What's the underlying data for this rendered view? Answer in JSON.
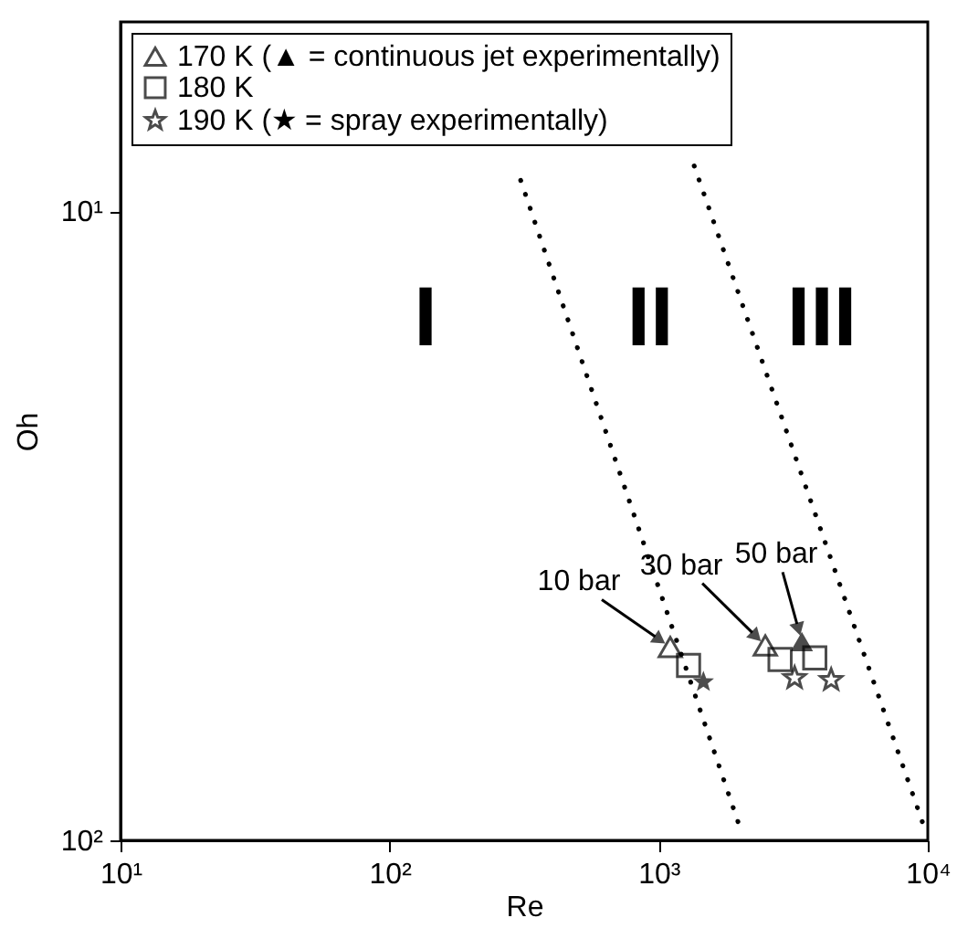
{
  "chart_data": {
    "type": "scatter",
    "xlabel": "Re",
    "ylabel": "Oh",
    "log": "xy",
    "xlim": [
      10,
      10000
    ],
    "ylim": [
      100,
      5
    ],
    "xticks": [
      {
        "value": 10,
        "label": "10¹"
      },
      {
        "value": 100,
        "label": "10²"
      },
      {
        "value": 1000,
        "label": "10³"
      },
      {
        "value": 10000,
        "label": "10⁴"
      }
    ],
    "yticks": [
      {
        "value": 100,
        "label": "10²"
      },
      {
        "value": 10,
        "label": "10¹"
      }
    ],
    "grid": false,
    "legend": "top left",
    "series": [
      {
        "name": "170 K (▲ = continuous jet experimentally)",
        "color": "#000000",
        "marker": "triangle",
        "x": [
          1104,
          2490
        ],
        "values": [
          49.3,
          49.0
        ]
      },
      {
        "color": "#000000",
        "marker": "triangle",
        "x": [
          3404
        ],
        "values": [
          48.3
        ]
      },
      {
        "name": "180 K",
        "color": "#000000",
        "marker": "square",
        "x": [
          1291,
          2825,
          3802
        ],
        "values": [
          52.7,
          51.6,
          51.3
        ]
      },
      {
        "name": "190 K (★ = spray experimentally)",
        "color": "#000000",
        "marker": "star",
        "x": [
          3200,
          4375
        ],
        "values": [
          55.2,
          55.6
        ]
      },
      {
        "color": "#000000",
        "marker": "star",
        "x": [
          1466
        ],
        "values": [
          56.0
        ]
      },
      {
        "type": "line",
        "color": "#000000",
        "marker": "none",
        "line_style": "dotted",
        "x": [
          307,
          1972
        ],
        "values": [
          8.93,
          93.5
        ]
      },
      {
        "type": "line",
        "color": "#000000",
        "marker": "none",
        "line_style": "dotted",
        "x": [
          1355,
          9550
        ],
        "values": [
          8.47,
          93.5
        ]
      }
    ],
    "annotations": [
      {
        "text": "10 bar",
        "x": 1104,
        "y": 49.3
      },
      {
        "text": "30 bar",
        "x": 2490,
        "y": 49.0
      },
      {
        "text": "50 bar",
        "x": 3404,
        "y": 48.3
      },
      "I",
      "II",
      "III"
    ]
  }
}
